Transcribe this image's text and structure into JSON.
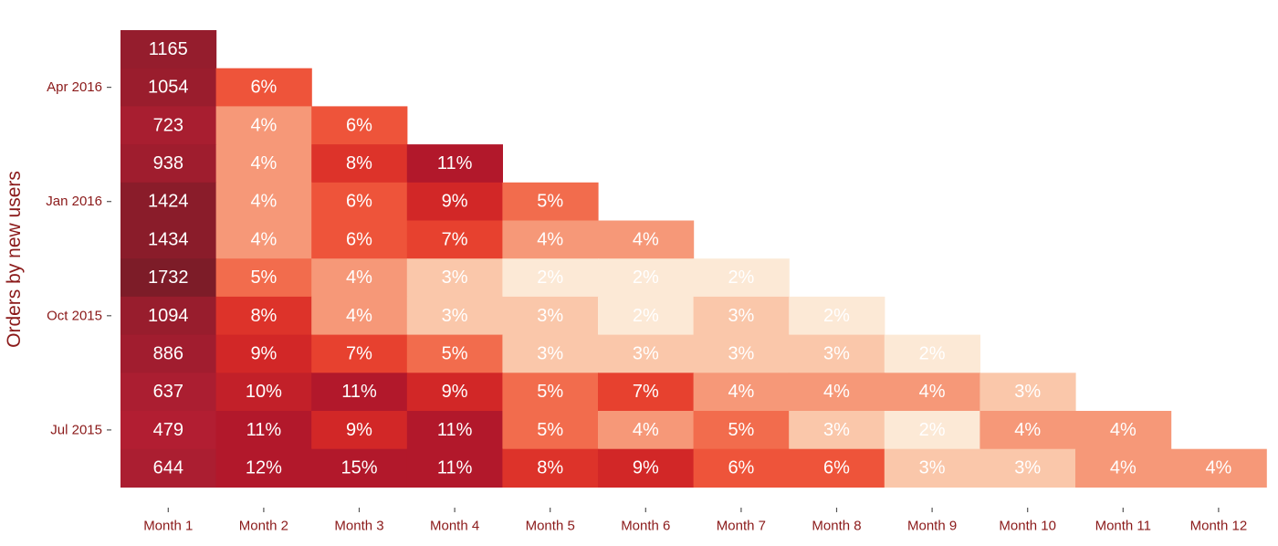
{
  "chart_data": {
    "type": "heatmap",
    "title": "",
    "ylabel": "Orders by new users",
    "xlabel": "",
    "grid": false,
    "legend": false,
    "columns": [
      "Month 1",
      "Month 2",
      "Month 3",
      "Month 4",
      "Month 5",
      "Month 6",
      "Month 7",
      "Month 8",
      "Month 9",
      "Month 10",
      "Month 11",
      "Month 12"
    ],
    "y_tick_labels": [
      {
        "row": 1,
        "label": "Apr 2016"
      },
      {
        "row": 4,
        "label": "Jan 2016"
      },
      {
        "row": 7,
        "label": "Oct 2015"
      },
      {
        "row": 10,
        "label": "Jul 2015"
      }
    ],
    "rows": [
      {
        "new_user_orders": 1165,
        "retention": []
      },
      {
        "new_user_orders": 1054,
        "retention": [
          "6%"
        ]
      },
      {
        "new_user_orders": 723,
        "retention": [
          "4%",
          "6%"
        ]
      },
      {
        "new_user_orders": 938,
        "retention": [
          "4%",
          "8%",
          "11%"
        ]
      },
      {
        "new_user_orders": 1424,
        "retention": [
          "4%",
          "6%",
          "9%",
          "5%"
        ]
      },
      {
        "new_user_orders": 1434,
        "retention": [
          "4%",
          "6%",
          "7%",
          "4%",
          "4%"
        ]
      },
      {
        "new_user_orders": 1732,
        "retention": [
          "5%",
          "4%",
          "3%",
          "2%",
          "2%",
          "2%"
        ]
      },
      {
        "new_user_orders": 1094,
        "retention": [
          "8%",
          "4%",
          "3%",
          "3%",
          "2%",
          "3%",
          "2%"
        ]
      },
      {
        "new_user_orders": 886,
        "retention": [
          "9%",
          "7%",
          "5%",
          "3%",
          "3%",
          "3%",
          "3%",
          "2%"
        ]
      },
      {
        "new_user_orders": 637,
        "retention": [
          "10%",
          "11%",
          "9%",
          "5%",
          "7%",
          "4%",
          "4%",
          "4%",
          "3%"
        ]
      },
      {
        "new_user_orders": 479,
        "retention": [
          "11%",
          "9%",
          "11%",
          "5%",
          "4%",
          "5%",
          "3%",
          "2%",
          "4%",
          "4%"
        ]
      },
      {
        "new_user_orders": 644,
        "retention": [
          "12%",
          "15%",
          "11%",
          "8%",
          "9%",
          "6%",
          "6%",
          "3%",
          "3%",
          "4%",
          "4%"
        ]
      }
    ],
    "colors": {
      "colormap": "Reds",
      "month1_dark": "#7a1f2b",
      "high": "#c8262b",
      "mid": "#e8432f",
      "low": "#f6a07d",
      "lowest": "#fbe3cc",
      "label_color": "#8b1a1a"
    }
  }
}
